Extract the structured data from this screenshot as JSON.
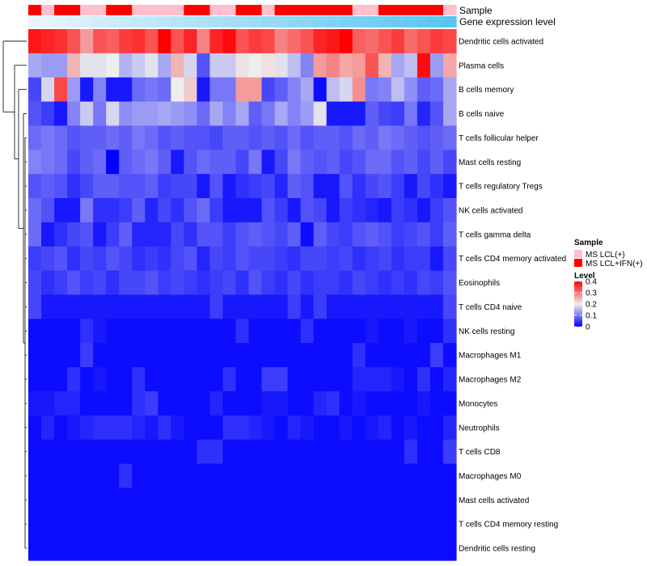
{
  "chart_data": {
    "type": "heatmap",
    "title": "",
    "annotation_tracks": [
      {
        "label": "Sample",
        "values": [
          1,
          0,
          1,
          1,
          0,
          0,
          1,
          1,
          0,
          0,
          0,
          0,
          1,
          1,
          0,
          0,
          1,
          1,
          0,
          1,
          1,
          1,
          1,
          1,
          1,
          0,
          0,
          1,
          1,
          1,
          1,
          1,
          0
        ]
      },
      {
        "label": "Gene expression level",
        "values": [
          0.0,
          0.03,
          0.06,
          0.09,
          0.12,
          0.16,
          0.19,
          0.22,
          0.25,
          0.28,
          0.31,
          0.34,
          0.38,
          0.41,
          0.44,
          0.47,
          0.5,
          0.53,
          0.56,
          0.59,
          0.63,
          0.66,
          0.69,
          0.72,
          0.75,
          0.78,
          0.81,
          0.84,
          0.88,
          0.91,
          0.94,
          0.97,
          1.0
        ]
      }
    ],
    "rows": [
      "Dendritic cells activated",
      "Plasma cells",
      "B cells memory",
      "B cells naive",
      "T cells follicular helper",
      "Mast cells resting",
      "T cells regulatory  Tregs",
      "NK cells activated",
      "T cells gamma delta",
      "T cells CD4 memory activated",
      "Eosinophils",
      "T cells CD4 naive",
      "NK cells resting",
      "Macrophages M1",
      "Macrophages M2",
      "Monocytes",
      "Neutrophils",
      "T cells CD8",
      "Macrophages M0",
      "Mast cells activated",
      "T cells CD4 memory resting",
      "Dendritic cells resting"
    ],
    "values": [
      [
        0.38,
        0.37,
        0.36,
        0.33,
        0.27,
        0.33,
        0.32,
        0.35,
        0.36,
        0.33,
        0.4,
        0.33,
        0.37,
        0.29,
        0.37,
        0.39,
        0.33,
        0.35,
        0.34,
        0.29,
        0.31,
        0.33,
        0.37,
        0.38,
        0.4,
        0.32,
        0.31,
        0.33,
        0.35,
        0.31,
        0.33,
        0.35,
        0.34
      ],
      [
        0.14,
        0.13,
        0.13,
        0.25,
        0.19,
        0.19,
        0.2,
        0.15,
        0.17,
        0.19,
        0.14,
        0.25,
        0.18,
        0.07,
        0.17,
        0.17,
        0.21,
        0.2,
        0.21,
        0.19,
        0.16,
        0.11,
        0.27,
        0.29,
        0.26,
        0.27,
        0.33,
        0.25,
        0.14,
        0.16,
        0.39,
        0.13,
        0.26
      ],
      [
        0.06,
        0.18,
        0.34,
        0.13,
        0.02,
        0.11,
        0.02,
        0.02,
        0.09,
        0.1,
        0.09,
        0.2,
        0.23,
        0.02,
        0.1,
        0.1,
        0.27,
        0.27,
        0.06,
        0.08,
        0.11,
        0.14,
        0.01,
        0.16,
        0.18,
        0.28,
        0.1,
        0.11,
        0.16,
        0.12,
        0.08,
        0.09,
        0.14
      ],
      [
        0.07,
        0.05,
        0.02,
        0.11,
        0.17,
        0.1,
        0.18,
        0.12,
        0.13,
        0.13,
        0.14,
        0.13,
        0.12,
        0.09,
        0.14,
        0.11,
        0.14,
        0.08,
        0.1,
        0.14,
        0.11,
        0.13,
        0.19,
        0.02,
        0.02,
        0.02,
        0.08,
        0.06,
        0.05,
        0.1,
        0.03,
        0.07,
        0.14
      ],
      [
        0.09,
        0.1,
        0.09,
        0.07,
        0.08,
        0.08,
        0.09,
        0.08,
        0.1,
        0.09,
        0.07,
        0.08,
        0.07,
        0.07,
        0.06,
        0.08,
        0.08,
        0.07,
        0.08,
        0.07,
        0.09,
        0.07,
        0.08,
        0.08,
        0.07,
        0.09,
        0.08,
        0.1,
        0.09,
        0.08,
        0.07,
        0.08,
        0.09
      ],
      [
        0.11,
        0.1,
        0.09,
        0.06,
        0.08,
        0.09,
        0.0,
        0.08,
        0.09,
        0.1,
        0.08,
        0.02,
        0.07,
        0.09,
        0.08,
        0.08,
        0.06,
        0.1,
        0.02,
        0.06,
        0.1,
        0.08,
        0.07,
        0.08,
        0.06,
        0.07,
        0.09,
        0.09,
        0.07,
        0.08,
        0.06,
        0.08,
        0.06
      ],
      [
        0.07,
        0.08,
        0.07,
        0.04,
        0.06,
        0.08,
        0.08,
        0.07,
        0.07,
        0.08,
        0.05,
        0.06,
        0.06,
        0.02,
        0.07,
        0.02,
        0.04,
        0.05,
        0.06,
        0.03,
        0.08,
        0.07,
        0.02,
        0.02,
        0.07,
        0.04,
        0.06,
        0.07,
        0.05,
        0.02,
        0.06,
        0.04,
        0.02
      ],
      [
        0.09,
        0.07,
        0.02,
        0.02,
        0.1,
        0.04,
        0.04,
        0.05,
        0.08,
        0.03,
        0.06,
        0.04,
        0.07,
        0.09,
        0.05,
        0.02,
        0.02,
        0.02,
        0.07,
        0.05,
        0.02,
        0.07,
        0.06,
        0.02,
        0.05,
        0.04,
        0.03,
        0.02,
        0.05,
        0.04,
        0.02,
        0.05,
        0.07
      ],
      [
        0.09,
        0.02,
        0.04,
        0.06,
        0.07,
        0.02,
        0.05,
        0.08,
        0.03,
        0.03,
        0.03,
        0.06,
        0.04,
        0.07,
        0.07,
        0.05,
        0.07,
        0.08,
        0.07,
        0.06,
        0.08,
        0.01,
        0.08,
        0.06,
        0.05,
        0.07,
        0.08,
        0.07,
        0.05,
        0.06,
        0.07,
        0.05,
        0.08
      ],
      [
        0.05,
        0.06,
        0.07,
        0.04,
        0.06,
        0.05,
        0.07,
        0.06,
        0.04,
        0.05,
        0.04,
        0.06,
        0.07,
        0.03,
        0.06,
        0.05,
        0.07,
        0.06,
        0.06,
        0.05,
        0.04,
        0.06,
        0.06,
        0.05,
        0.06,
        0.04,
        0.05,
        0.06,
        0.04,
        0.05,
        0.05,
        0.02,
        0.06
      ],
      [
        0.06,
        0.04,
        0.05,
        0.07,
        0.05,
        0.06,
        0.04,
        0.06,
        0.06,
        0.07,
        0.05,
        0.06,
        0.05,
        0.04,
        0.05,
        0.06,
        0.04,
        0.07,
        0.05,
        0.04,
        0.06,
        0.04,
        0.05,
        0.05,
        0.04,
        0.06,
        0.05,
        0.04,
        0.05,
        0.04,
        0.06,
        0.05,
        0.07
      ],
      [
        0.06,
        0.02,
        0.02,
        0.02,
        0.02,
        0.02,
        0.02,
        0.02,
        0.02,
        0.02,
        0.02,
        0.02,
        0.02,
        0.02,
        0.05,
        0.02,
        0.02,
        0.02,
        0.02,
        0.02,
        0.05,
        0.02,
        0.05,
        0.02,
        0.02,
        0.02,
        0.02,
        0.02,
        0.02,
        0.02,
        0.02,
        0.02,
        0.06
      ],
      [
        0.01,
        0.01,
        0.01,
        0.01,
        0.04,
        0.02,
        0.01,
        0.01,
        0.01,
        0.01,
        0.01,
        0.01,
        0.01,
        0.01,
        0.01,
        0.01,
        0.04,
        0.01,
        0.01,
        0.01,
        0.01,
        0.04,
        0.01,
        0.01,
        0.01,
        0.01,
        0.02,
        0.01,
        0.01,
        0.02,
        0.01,
        0.01,
        0.04
      ],
      [
        0.01,
        0.01,
        0.01,
        0.01,
        0.05,
        0.01,
        0.01,
        0.01,
        0.01,
        0.01,
        0.01,
        0.01,
        0.01,
        0.01,
        0.01,
        0.01,
        0.01,
        0.01,
        0.01,
        0.01,
        0.01,
        0.01,
        0.01,
        0.01,
        0.01,
        0.04,
        0.01,
        0.01,
        0.01,
        0.01,
        0.01,
        0.05,
        0.01
      ],
      [
        0.01,
        0.01,
        0.01,
        0.04,
        0.01,
        0.02,
        0.01,
        0.01,
        0.04,
        0.01,
        0.01,
        0.01,
        0.01,
        0.01,
        0.01,
        0.04,
        0.01,
        0.01,
        0.05,
        0.05,
        0.01,
        0.01,
        0.01,
        0.01,
        0.01,
        0.03,
        0.03,
        0.03,
        0.02,
        0.01,
        0.04,
        0.01,
        0.03
      ],
      [
        0.02,
        0.02,
        0.03,
        0.03,
        0.01,
        0.01,
        0.01,
        0.01,
        0.04,
        0.05,
        0.01,
        0.01,
        0.01,
        0.01,
        0.03,
        0.01,
        0.01,
        0.01,
        0.02,
        0.02,
        0.01,
        0.01,
        0.03,
        0.04,
        0.01,
        0.02,
        0.01,
        0.01,
        0.01,
        0.01,
        0.02,
        0.01,
        0.01
      ],
      [
        0.01,
        0.03,
        0.01,
        0.02,
        0.03,
        0.04,
        0.04,
        0.04,
        0.03,
        0.02,
        0.04,
        0.02,
        0.01,
        0.01,
        0.01,
        0.04,
        0.04,
        0.03,
        0.02,
        0.01,
        0.03,
        0.02,
        0.01,
        0.01,
        0.02,
        0.01,
        0.02,
        0.03,
        0.01,
        0.02,
        0.01,
        0.01,
        0.03
      ],
      [
        0.01,
        0.01,
        0.01,
        0.01,
        0.01,
        0.01,
        0.01,
        0.01,
        0.01,
        0.01,
        0.01,
        0.01,
        0.01,
        0.04,
        0.04,
        0.01,
        0.01,
        0.01,
        0.01,
        0.01,
        0.01,
        0.01,
        0.01,
        0.01,
        0.01,
        0.01,
        0.01,
        0.01,
        0.01,
        0.04,
        0.01,
        0.01,
        0.05
      ],
      [
        0.01,
        0.01,
        0.01,
        0.01,
        0.01,
        0.01,
        0.01,
        0.04,
        0.01,
        0.01,
        0.01,
        0.01,
        0.01,
        0.01,
        0.01,
        0.01,
        0.01,
        0.01,
        0.01,
        0.01,
        0.01,
        0.01,
        0.01,
        0.01,
        0.01,
        0.01,
        0.01,
        0.01,
        0.01,
        0.01,
        0.01,
        0.01,
        0.01
      ],
      [
        0.01,
        0.01,
        0.01,
        0.01,
        0.01,
        0.01,
        0.01,
        0.01,
        0.01,
        0.01,
        0.01,
        0.01,
        0.01,
        0.01,
        0.01,
        0.01,
        0.01,
        0.01,
        0.01,
        0.01,
        0.01,
        0.01,
        0.01,
        0.01,
        0.01,
        0.01,
        0.01,
        0.01,
        0.01,
        0.01,
        0.01,
        0.01,
        0.01
      ],
      [
        0.01,
        0.01,
        0.01,
        0.01,
        0.01,
        0.01,
        0.01,
        0.01,
        0.01,
        0.01,
        0.01,
        0.01,
        0.01,
        0.01,
        0.01,
        0.01,
        0.01,
        0.01,
        0.01,
        0.01,
        0.01,
        0.01,
        0.01,
        0.01,
        0.01,
        0.01,
        0.01,
        0.01,
        0.01,
        0.01,
        0.01,
        0.01,
        0.01
      ],
      [
        0.01,
        0.01,
        0.01,
        0.01,
        0.01,
        0.01,
        0.01,
        0.01,
        0.01,
        0.01,
        0.01,
        0.01,
        0.01,
        0.01,
        0.01,
        0.01,
        0.01,
        0.01,
        0.01,
        0.01,
        0.01,
        0.01,
        0.01,
        0.01,
        0.01,
        0.01,
        0.01,
        0.01,
        0.01,
        0.01,
        0.01,
        0.01,
        0.01
      ]
    ],
    "color_scale": {
      "min": 0,
      "max": 0.4,
      "stops": [
        "#0000ff",
        "#eeeeee",
        "#ff0000"
      ]
    },
    "legend": {
      "sample": {
        "title": "Sample",
        "items": [
          {
            "label": "MS LCL(+)",
            "color": "#ffc0cb"
          },
          {
            "label": "MS LCL+IFN(+)",
            "color": "#ff0000"
          }
        ]
      },
      "level": {
        "title": "Level",
        "ticks": [
          "0.4",
          "0.3",
          "0.2",
          "0.1",
          "0"
        ],
        "tick_values": [
          0.4,
          0.3,
          0.2,
          0.1,
          0
        ]
      }
    },
    "gene_expression_colors": [
      "#e9f4fb",
      "#59c6f0"
    ],
    "row_dendrogram": true,
    "legend_position": "right"
  }
}
